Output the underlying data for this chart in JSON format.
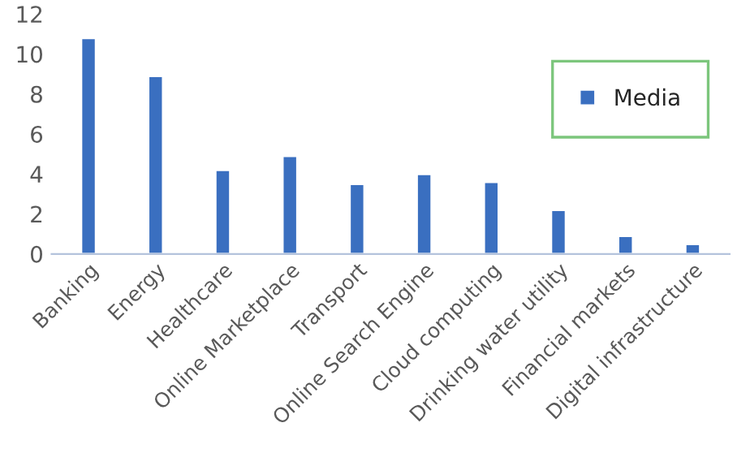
{
  "chart_data": {
    "type": "bar",
    "categories": [
      "Banking",
      "Energy",
      "Healthcare",
      "Online Marketplace",
      "Transport",
      "Online Search Engine",
      "Cloud computing",
      "Drinking water utility",
      "Financial markets",
      "Digital infrastructure"
    ],
    "series": [
      {
        "name": "Media",
        "color": "#3a6fc0",
        "values": [
          10.8,
          8.9,
          4.2,
          4.9,
          3.5,
          4.0,
          3.6,
          2.2,
          0.9,
          0.5
        ]
      }
    ],
    "ylim": [
      0,
      12
    ],
    "yticks": [
      0,
      2,
      4,
      6,
      8,
      10,
      12
    ],
    "grid": false,
    "legend": "top right"
  }
}
